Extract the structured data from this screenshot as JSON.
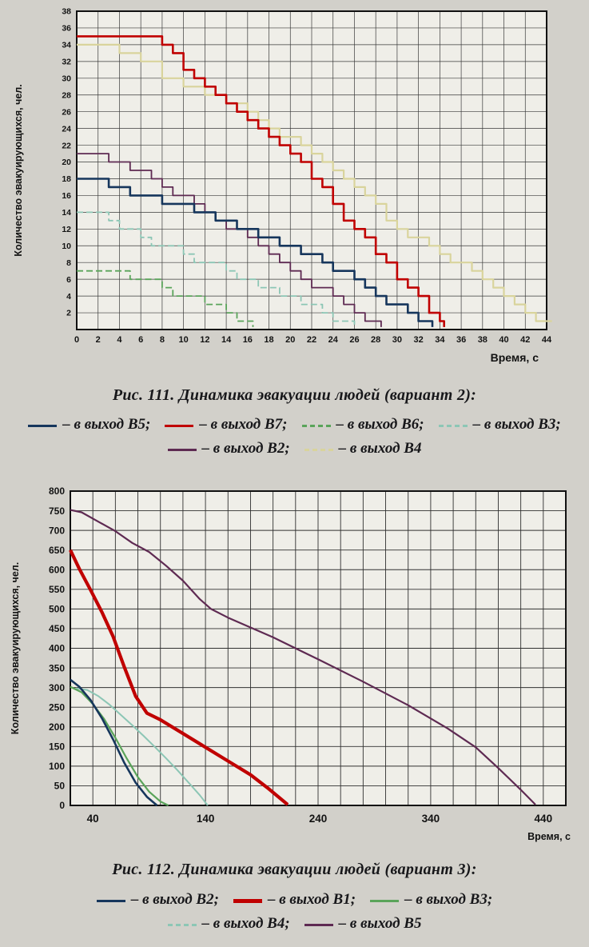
{
  "page": {
    "background": "#d2d0ca",
    "plot_background": "#efeee8"
  },
  "figures": [
    {
      "caption": "Рис. 111. Динамика эвакуации людей (вариант 2):",
      "legend_rows": [
        [
          {
            "label": "– в выход В5;",
            "color": "#16365c",
            "dash": false
          },
          {
            "label": "– в выход В7;",
            "color": "#c00000",
            "dash": false
          },
          {
            "label": "– в выход В6;",
            "color": "#5aa45a",
            "dash": true
          },
          {
            "label": "– в выход В3;",
            "color": "#8cc6b5",
            "dash": true
          }
        ],
        [
          {
            "label": "– в выход В2;",
            "color": "#5e2a52",
            "dash": false
          },
          {
            "label": "– в выход В4",
            "color": "#d9d49c",
            "dash": true
          }
        ]
      ]
    },
    {
      "caption": "Рис. 112. Динамика эвакуации людей (вариант 3):",
      "legend_rows": [
        [
          {
            "label": "– в выход В2;",
            "color": "#16365c",
            "dash": false
          },
          {
            "label": "– в выход В1;",
            "color": "#c00000",
            "dash": false,
            "thick": true
          },
          {
            "label": "– в выход В3;",
            "color": "#5aa45a",
            "dash": false
          }
        ],
        [
          {
            "label": "– в выход В4;",
            "color": "#8cc6b5",
            "dash": true
          },
          {
            "label": "– в выход В5",
            "color": "#5e2a52",
            "dash": false
          }
        ]
      ]
    }
  ],
  "chart_data": [
    {
      "type": "line",
      "step": true,
      "title": "Динамика эвакуации людей (вариант 2)",
      "xlabel": "Время, с",
      "ylabel": "Количество эвакуирующихся, чел.",
      "xlim": [
        0,
        44
      ],
      "ylim": [
        0,
        38
      ],
      "xgrid_step": 2,
      "ygrid_step": 2,
      "xtick_values": [
        0,
        2,
        4,
        6,
        8,
        10,
        12,
        14,
        16,
        18,
        20,
        22,
        24,
        26,
        28,
        30,
        32,
        34,
        36,
        38,
        40,
        42,
        44
      ],
      "ytick_values": [
        2,
        4,
        6,
        8,
        10,
        12,
        14,
        16,
        18,
        20,
        22,
        24,
        26,
        28,
        30,
        32,
        34,
        36,
        38
      ],
      "grid": true,
      "legend_position": "below",
      "series": [
        {
          "name": "в выход В4",
          "color": "#d9d49c",
          "width": 2.2,
          "dash": null,
          "points": [
            [
              0,
              34
            ],
            [
              3,
              34
            ],
            [
              4,
              33
            ],
            [
              6,
              32
            ],
            [
              8,
              30
            ],
            [
              10,
              29
            ],
            [
              12,
              28
            ],
            [
              14,
              27
            ],
            [
              16,
              26
            ],
            [
              17,
              25
            ],
            [
              18,
              24
            ],
            [
              19,
              23
            ],
            [
              21,
              22
            ],
            [
              22,
              21
            ],
            [
              23,
              20
            ],
            [
              24,
              19
            ],
            [
              25,
              18
            ],
            [
              26,
              17
            ],
            [
              27,
              16
            ],
            [
              28,
              15
            ],
            [
              29,
              13
            ],
            [
              30,
              12
            ],
            [
              31,
              11
            ],
            [
              33,
              10
            ],
            [
              34,
              9
            ],
            [
              35,
              8
            ],
            [
              37,
              7
            ],
            [
              38,
              6
            ],
            [
              39,
              5
            ],
            [
              40,
              4
            ],
            [
              41,
              3
            ],
            [
              42,
              2
            ],
            [
              43,
              1
            ],
            [
              44.5,
              1
            ]
          ]
        },
        {
          "name": "в выход В3",
          "color": "#8cc6b5",
          "width": 1.8,
          "dash": "8 4",
          "points": [
            [
              0,
              14
            ],
            [
              2,
              14
            ],
            [
              3,
              13
            ],
            [
              4,
              12
            ],
            [
              6,
              11
            ],
            [
              7,
              10
            ],
            [
              9,
              10
            ],
            [
              10,
              9
            ],
            [
              11,
              8
            ],
            [
              13,
              8
            ],
            [
              14,
              7
            ],
            [
              15,
              6
            ],
            [
              17,
              5
            ],
            [
              19,
              4
            ],
            [
              21,
              3
            ],
            [
              23,
              2
            ],
            [
              24,
              1
            ],
            [
              26,
              0.3
            ]
          ]
        },
        {
          "name": "в выход В6",
          "color": "#5aa45a",
          "width": 1.8,
          "dash": "8 4",
          "points": [
            [
              0,
              7
            ],
            [
              4,
              7
            ],
            [
              5,
              6
            ],
            [
              7,
              6
            ],
            [
              8,
              5
            ],
            [
              9,
              4
            ],
            [
              11,
              4
            ],
            [
              12,
              3
            ],
            [
              13,
              3
            ],
            [
              14,
              2
            ],
            [
              15,
              1
            ],
            [
              16.5,
              0.3
            ]
          ]
        },
        {
          "name": "в выход В2",
          "color": "#5e2a52",
          "width": 1.8,
          "dash": null,
          "points": [
            [
              0,
              21
            ],
            [
              2,
              21
            ],
            [
              3,
              20
            ],
            [
              5,
              19
            ],
            [
              7,
              18
            ],
            [
              8,
              17
            ],
            [
              9,
              16
            ],
            [
              11,
              15
            ],
            [
              12,
              14
            ],
            [
              13,
              13
            ],
            [
              14,
              12
            ],
            [
              16,
              11
            ],
            [
              17,
              10
            ],
            [
              18,
              9
            ],
            [
              19,
              8
            ],
            [
              20,
              7
            ],
            [
              21,
              6
            ],
            [
              22,
              5
            ],
            [
              24,
              4
            ],
            [
              25,
              3
            ],
            [
              26,
              2
            ],
            [
              27,
              1
            ],
            [
              28.5,
              0.3
            ]
          ]
        },
        {
          "name": "в выход В5",
          "color": "#16365c",
          "width": 2.6,
          "dash": null,
          "points": [
            [
              0,
              18
            ],
            [
              2,
              18
            ],
            [
              3,
              17
            ],
            [
              5,
              16
            ],
            [
              7,
              16
            ],
            [
              8,
              15
            ],
            [
              10,
              15
            ],
            [
              11,
              14
            ],
            [
              13,
              13
            ],
            [
              15,
              12
            ],
            [
              17,
              11
            ],
            [
              19,
              10
            ],
            [
              21,
              9
            ],
            [
              23,
              8
            ],
            [
              24,
              7
            ],
            [
              26,
              6
            ],
            [
              27,
              5
            ],
            [
              28,
              4
            ],
            [
              29,
              3
            ],
            [
              31,
              2
            ],
            [
              32,
              1
            ],
            [
              33.3,
              0.3
            ]
          ]
        },
        {
          "name": "в выход В7",
          "color": "#c00000",
          "width": 2.6,
          "dash": null,
          "points": [
            [
              0,
              35
            ],
            [
              7,
              35
            ],
            [
              8,
              34
            ],
            [
              9,
              33
            ],
            [
              10,
              31
            ],
            [
              11,
              30
            ],
            [
              12,
              29
            ],
            [
              13,
              28
            ],
            [
              14,
              27
            ],
            [
              15,
              26
            ],
            [
              16,
              25
            ],
            [
              17,
              24
            ],
            [
              18,
              23
            ],
            [
              19,
              22
            ],
            [
              20,
              21
            ],
            [
              21,
              20
            ],
            [
              22,
              18
            ],
            [
              23,
              17
            ],
            [
              24,
              15
            ],
            [
              25,
              13
            ],
            [
              26,
              12
            ],
            [
              27,
              11
            ],
            [
              28,
              9
            ],
            [
              29,
              8
            ],
            [
              30,
              6
            ],
            [
              31,
              5
            ],
            [
              32,
              4
            ],
            [
              33,
              2
            ],
            [
              34,
              1
            ],
            [
              34.4,
              0.3
            ]
          ]
        }
      ]
    },
    {
      "type": "line",
      "step": false,
      "title": "Динамика эвакуации людей (вариант 3)",
      "xlabel": "Время, с",
      "ylabel": "Количество эвакуирующихся, чел.",
      "xlim": [
        20,
        460
      ],
      "ylim": [
        0,
        800
      ],
      "xgrid_step": 20,
      "ygrid_step": 50,
      "xtick_values": [
        40,
        140,
        240,
        340,
        440
      ],
      "ytick_values": [
        0,
        50,
        100,
        150,
        200,
        250,
        300,
        350,
        400,
        450,
        500,
        550,
        600,
        650,
        700,
        750,
        800
      ],
      "grid": true,
      "legend_position": "below",
      "series": [
        {
          "name": "в выход В4",
          "color": "#8cc6b5",
          "width": 2.0,
          "dash": null,
          "points": [
            [
              25,
              298
            ],
            [
              35,
              294
            ],
            [
              45,
              278
            ],
            [
              55,
              256
            ],
            [
              65,
              230
            ],
            [
              75,
              204
            ],
            [
              85,
              177
            ],
            [
              95,
              149
            ],
            [
              105,
              120
            ],
            [
              115,
              90
            ],
            [
              125,
              58
            ],
            [
              135,
              26
            ],
            [
              142,
              0
            ]
          ]
        },
        {
          "name": "в выход В3",
          "color": "#5aa45a",
          "width": 2.2,
          "dash": null,
          "points": [
            [
              20,
              302
            ],
            [
              30,
              288
            ],
            [
              40,
              258
            ],
            [
              50,
              220
            ],
            [
              60,
              172
            ],
            [
              70,
              120
            ],
            [
              80,
              72
            ],
            [
              90,
              35
            ],
            [
              100,
              10
            ],
            [
              107,
              0
            ]
          ]
        },
        {
          "name": "в выход В2",
          "color": "#16365c",
          "width": 2.6,
          "dash": null,
          "points": [
            [
              20,
              320
            ],
            [
              28,
              302
            ],
            [
              38,
              268
            ],
            [
              48,
              222
            ],
            [
              58,
              168
            ],
            [
              68,
              108
            ],
            [
              78,
              58
            ],
            [
              88,
              22
            ],
            [
              97,
              0
            ]
          ]
        },
        {
          "name": "в выход В1",
          "color": "#c00000",
          "width": 4.2,
          "dash": null,
          "points": [
            [
              20,
              650
            ],
            [
              28,
              602
            ],
            [
              38,
              548
            ],
            [
              48,
              492
            ],
            [
              58,
              430
            ],
            [
              68,
              352
            ],
            [
              78,
              278
            ],
            [
              88,
              235
            ],
            [
              100,
              218
            ],
            [
              120,
              183
            ],
            [
              140,
              148
            ],
            [
              160,
              113
            ],
            [
              180,
              78
            ],
            [
              195,
              45
            ],
            [
              213,
              2
            ]
          ]
        },
        {
          "name": "в выход В5",
          "color": "#5e2a52",
          "width": 2.2,
          "dash": null,
          "points": [
            [
              20,
              752
            ],
            [
              30,
              746
            ],
            [
              45,
              722
            ],
            [
              60,
              698
            ],
            [
              75,
              668
            ],
            [
              90,
              645
            ],
            [
              105,
              610
            ],
            [
              120,
              572
            ],
            [
              135,
              525
            ],
            [
              145,
              500
            ],
            [
              160,
              478
            ],
            [
              200,
              428
            ],
            [
              240,
              372
            ],
            [
              280,
              315
            ],
            [
              320,
              255
            ],
            [
              355,
              196
            ],
            [
              380,
              148
            ],
            [
              400,
              95
            ],
            [
              420,
              40
            ],
            [
              433,
              2
            ]
          ]
        }
      ]
    }
  ]
}
